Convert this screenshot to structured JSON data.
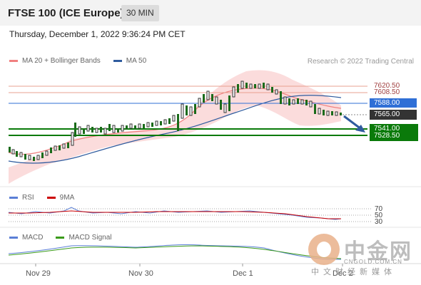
{
  "header": {
    "title": "FTSE 100 (ICE Europe)",
    "timeframe": "30 MIN",
    "datetime": "Thursday, December 1, 2022 9:36:24 PM CET"
  },
  "main_legend": {
    "items": [
      {
        "label": "MA 20 + Bollinger Bands",
        "color": "#f08080"
      },
      {
        "label": "MA 50",
        "color": "#2f5b9e"
      }
    ],
    "credit": "Research © 2022 Trading Central"
  },
  "levels": [
    {
      "label": "7620.50",
      "style": "plain",
      "color": "#e8a090"
    },
    {
      "label": "7608.50",
      "style": "plain",
      "color": "#e8a090"
    },
    {
      "label": "7588.00",
      "style": "blue",
      "color": "#2f6fd6"
    },
    {
      "label": "7565.00",
      "style": "dark",
      "color": "#333333"
    },
    {
      "label": "7541.00",
      "style": "green",
      "color": "#0a7a0a"
    },
    {
      "label": "7528.50",
      "style": "green",
      "color": "#0a7a0a"
    }
  ],
  "rsi_panel": {
    "legend": [
      {
        "label": "RSI",
        "color": "#5b7fd6"
      },
      {
        "label": "9MA",
        "color": "#cc0000"
      }
    ],
    "ticks": [
      "70",
      "50",
      "30"
    ]
  },
  "macd_panel": {
    "legend": [
      {
        "label": "MACD",
        "color": "#5b7fd6"
      },
      {
        "label": "MACD Signal",
        "color": "#3a9a1a"
      }
    ]
  },
  "x_axis": {
    "labels": [
      "Nov 29",
      "Nov 30",
      "Dec 1",
      "Dec 2"
    ]
  },
  "watermark": {
    "cn_name": "中金网",
    "domain": "CNGOLD.COM.CN",
    "sub": "中文财经新媒体"
  }
}
